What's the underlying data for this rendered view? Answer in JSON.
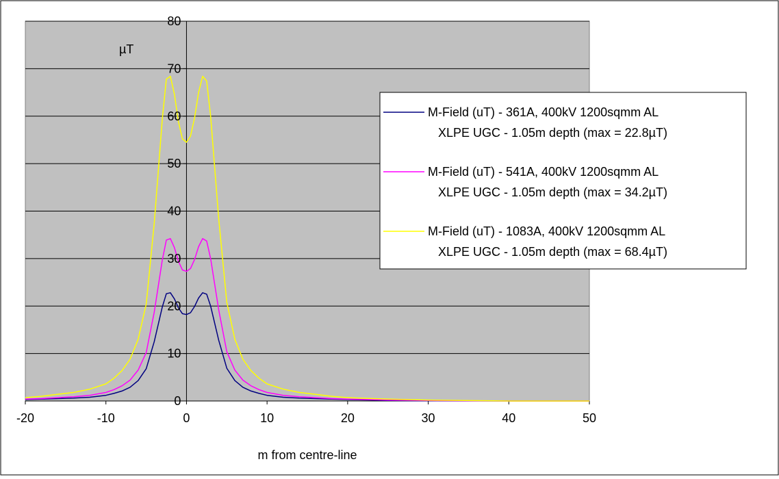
{
  "chart_data": {
    "type": "line",
    "title": "",
    "xlabel": "m from centre-line",
    "ylabel": "µT",
    "xlim": [
      -20,
      50
    ],
    "ylim": [
      0,
      80
    ],
    "xticks": [
      "-20",
      "-10",
      "0",
      "10",
      "20",
      "30",
      "40",
      "50"
    ],
    "yticks": [
      "0",
      "10",
      "20",
      "30",
      "40",
      "50",
      "60",
      "70",
      "80"
    ],
    "grid": "horizontal",
    "legend_position": "right",
    "plot_background": "#c0c0c0",
    "x": [
      -20,
      -18,
      -16,
      -14,
      -12,
      -10,
      -9,
      -8,
      -7,
      -6,
      -5,
      -4,
      -3,
      -2.5,
      -2,
      -1.5,
      -1,
      -0.5,
      0,
      0.5,
      1,
      1.5,
      2,
      2.5,
      3,
      4,
      5,
      6,
      7,
      8,
      9,
      10,
      12,
      14,
      16,
      18,
      20,
      25,
      30,
      40,
      50
    ],
    "series": [
      {
        "name": "M-Field (uT) - 361A, 400kV 1200sqmm AL XLPE UGC - 1.05m depth (max = 22.8µT)",
        "color": "#000080",
        "values": [
          0.3,
          0.4,
          0.5,
          0.6,
          0.8,
          1.2,
          1.6,
          2.1,
          2.9,
          4.3,
          6.8,
          12.5,
          19.8,
          22.6,
          22.8,
          21.5,
          19.6,
          18.4,
          18.2,
          18.6,
          19.9,
          21.7,
          22.8,
          22.5,
          20.0,
          12.8,
          6.9,
          4.3,
          2.9,
          2.1,
          1.6,
          1.2,
          0.8,
          0.6,
          0.5,
          0.4,
          0.3,
          0.1,
          0.05,
          0.0,
          0.0
        ]
      },
      {
        "name": "M-Field (uT) - 541A, 400kV 1200sqmm AL XLPE UGC - 1.05m depth (max = 34.2µT)",
        "color": "#ff00ff",
        "values": [
          0.4,
          0.5,
          0.7,
          0.9,
          1.2,
          1.8,
          2.4,
          3.2,
          4.4,
          6.5,
          10.2,
          18.7,
          29.7,
          33.9,
          34.2,
          32.3,
          29.4,
          27.6,
          27.3,
          27.9,
          29.8,
          32.5,
          34.2,
          33.7,
          30.0,
          19.2,
          10.4,
          6.5,
          4.4,
          3.2,
          2.4,
          1.8,
          1.2,
          0.9,
          0.7,
          0.5,
          0.4,
          0.2,
          0.1,
          0.0,
          0.0
        ]
      },
      {
        "name": "M-Field (uT) - 1083A, 400kV 1200sqmm AL XLPE UGC - 1.05m depth (max = 68.4µT)",
        "color": "#ffff00",
        "values": [
          0.7,
          1.0,
          1.4,
          1.8,
          2.5,
          3.6,
          4.8,
          6.4,
          8.8,
          13.0,
          20.4,
          37.4,
          59.4,
          67.8,
          68.4,
          64.6,
          58.8,
          55.2,
          54.5,
          55.8,
          59.6,
          65.0,
          68.4,
          67.4,
          60.0,
          38.4,
          20.8,
          13.0,
          8.8,
          6.4,
          4.8,
          3.6,
          2.5,
          1.8,
          1.4,
          1.0,
          0.7,
          0.4,
          0.2,
          0.0,
          0.0
        ]
      }
    ]
  }
}
